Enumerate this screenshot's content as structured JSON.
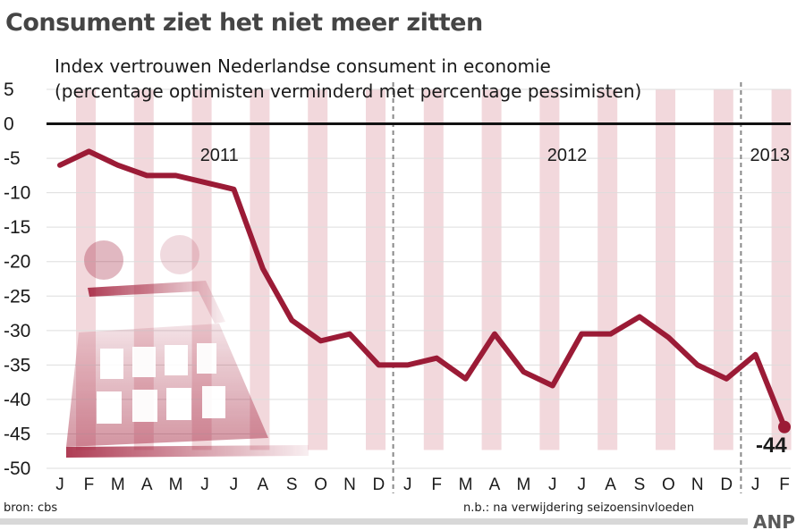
{
  "title": "Consument ziet het niet meer zitten",
  "subtitle_line1": "Index vertrouwen Nederlandse consument in economie",
  "subtitle_line2": "(percentage optimisten verminderd met percentage pessimisten)",
  "source": "bron: cbs",
  "footnote": "n.b.: na verwijdering seizoensinvloeden",
  "brand": "ANP",
  "end_label": "-44",
  "colors": {
    "line": "#9b1b36",
    "stripe": "#f2d8dc",
    "zero_line": "#111111",
    "grid": "#dddddd",
    "divider": "#888888",
    "illustration": "#a11c38"
  },
  "illustration": "shopping-cart-illustration",
  "chart_data": {
    "type": "line",
    "x": [
      "J",
      "F",
      "M",
      "A",
      "M",
      "J",
      "J",
      "A",
      "S",
      "O",
      "N",
      "D",
      "J",
      "F",
      "M",
      "A",
      "M",
      "J",
      "J",
      "A",
      "S",
      "O",
      "N",
      "D",
      "J",
      "F"
    ],
    "years": [
      {
        "label": "2011",
        "start_index": 0
      },
      {
        "label": "2012",
        "start_index": 12
      },
      {
        "label": "2013",
        "start_index": 24
      }
    ],
    "series": [
      {
        "values": [
          -6,
          -4,
          -6,
          -7.5,
          -7.5,
          -8.5,
          -9.5,
          -21,
          -28.5,
          -31.5,
          -30.5,
          -35,
          -35,
          -34,
          -37,
          -30.5,
          -36,
          -38,
          -30.5,
          -30.5,
          -28,
          -31,
          -35,
          -37,
          -33.5,
          -44
        ]
      }
    ],
    "yticks": [
      5,
      0,
      -5,
      -10,
      -15,
      -20,
      -25,
      -30,
      -35,
      -40,
      -45,
      -50
    ],
    "ylim": [
      -50,
      5
    ],
    "zero_line": true,
    "grid": true
  }
}
